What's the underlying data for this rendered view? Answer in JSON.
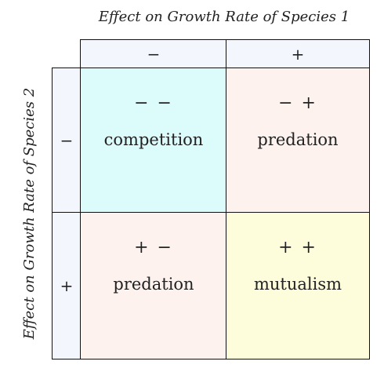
{
  "titles": {
    "top": "Effect on Growth Rate of Species 1",
    "side": "Effect on Growth Rate of Species 2"
  },
  "columns": [
    {
      "sign": "−"
    },
    {
      "sign": "+"
    }
  ],
  "rows": [
    {
      "sign": "−"
    },
    {
      "sign": "+"
    }
  ],
  "cells": {
    "minus_minus": {
      "signs": "− −",
      "label": "competition",
      "color": "#dcfbfb"
    },
    "minus_plus": {
      "signs": "− +",
      "label": "predation",
      "color": "#fdf2ee"
    },
    "plus_minus": {
      "signs": "+ −",
      "label": "predation",
      "color": "#fdf2ee"
    },
    "plus_plus": {
      "signs": "+ +",
      "label": "mutualism",
      "color": "#fdfddc"
    }
  },
  "colors": {
    "header": "#f3f7fd",
    "border": "#111111"
  }
}
